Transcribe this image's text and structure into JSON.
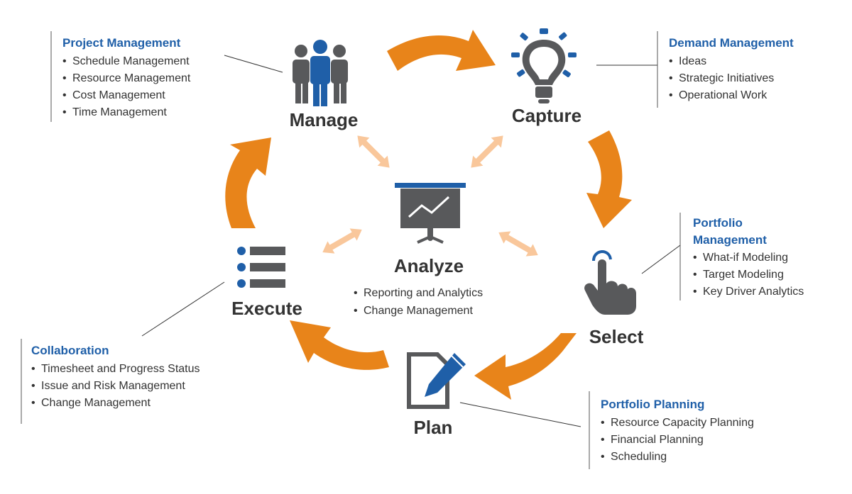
{
  "colors": {
    "cycle_arrow": "#e8841a",
    "cycle_arrow_dark": "#c86a10",
    "link_arrow": "#f9c79b",
    "icon_gray": "#58595b",
    "accent_blue": "#1f5fa8",
    "text": "#333333"
  },
  "stages": {
    "manage": {
      "label": "Manage",
      "icon": "people-icon"
    },
    "capture": {
      "label": "Capture",
      "icon": "lightbulb-icon"
    },
    "select": {
      "label": "Select",
      "icon": "hand-pointer-icon"
    },
    "plan": {
      "label": "Plan",
      "icon": "document-pen-icon"
    },
    "execute": {
      "label": "Execute",
      "icon": "list-icon"
    },
    "analyze": {
      "label": "Analyze",
      "icon": "presentation-chart-icon",
      "items": [
        "Reporting and Analytics",
        "Change Management"
      ]
    }
  },
  "boxes": {
    "project_management": {
      "title": "Project Management",
      "items": [
        "Schedule Management",
        "Resource Management",
        "Cost Management",
        "Time Management"
      ]
    },
    "demand_management": {
      "title": "Demand Management",
      "items": [
        "Ideas",
        "Strategic Initiatives",
        "Operational Work"
      ]
    },
    "portfolio_management": {
      "title_lines": [
        "Portfolio",
        "Management"
      ],
      "items": [
        "What-if Modeling",
        "Target Modeling",
        "Key Driver Analytics"
      ]
    },
    "collaboration": {
      "title": "Collaboration",
      "items": [
        "Timesheet and Progress Status",
        "Issue and Risk Management",
        "Change Management"
      ]
    },
    "portfolio_planning": {
      "title": "Portfolio Planning",
      "items": [
        "Resource Capacity Planning",
        "Financial Planning",
        "Scheduling"
      ]
    }
  },
  "bullet": "•"
}
